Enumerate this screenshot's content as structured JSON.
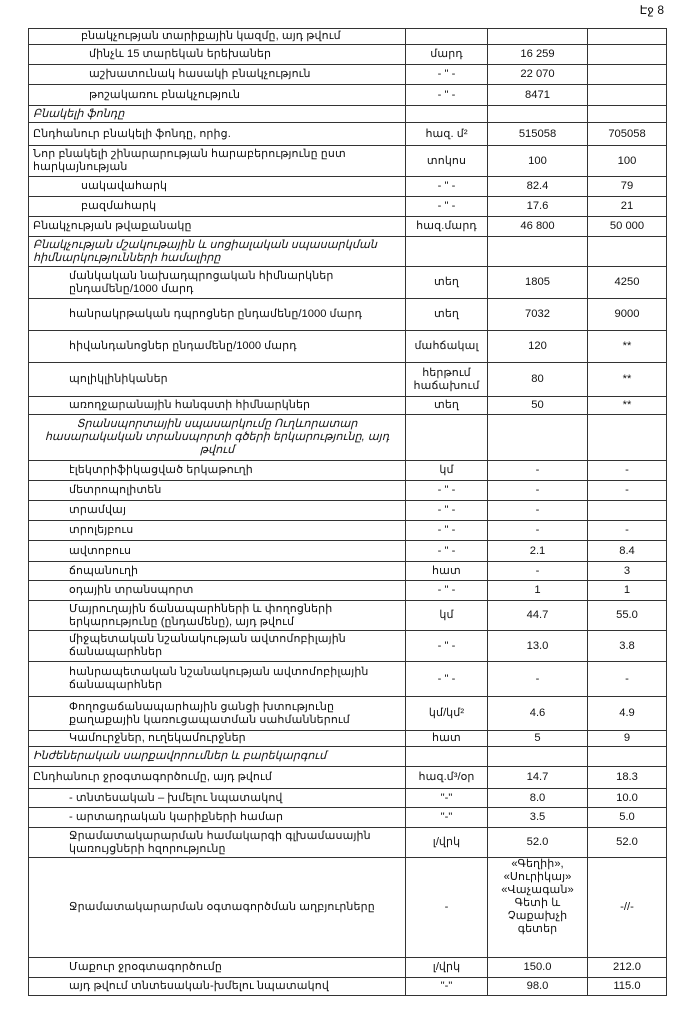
{
  "page_number": "Էջ 8",
  "rows": [
    {
      "label": "բնակչության տարիքային կազմը, այդ թվում",
      "unit": "",
      "v1": "",
      "v2": "",
      "indent": 1,
      "h": 16
    },
    {
      "label": "մինչև 15 տարեկան երեխաներ",
      "unit": "մարդ",
      "v1": "16 259",
      "v2": "",
      "indent": 2,
      "h": 20
    },
    {
      "label": "աշխատունակ հասակի բնակչություն",
      "unit": "- \" -",
      "v1": "22 070",
      "v2": "",
      "indent": 2,
      "h": 20
    },
    {
      "label": "թոշակառու բնակչություն",
      "unit": "- \" -",
      "v1": "8471",
      "v2": "",
      "indent": 2,
      "h": 21
    },
    {
      "label": "Բնակելի ֆոնդը",
      "unit": "",
      "v1": "",
      "v2": "",
      "kind": "sec",
      "h": 17
    },
    {
      "label": "Ընդհանուր բնակելի ֆոնդը, որից.",
      "unit": "հազ. մ²",
      "v1": "515058",
      "v2": "705058",
      "h": 23
    },
    {
      "label": "Նոր բնակելի շինարարության հարաբերությունը ըստ հարկայնության",
      "unit": "տոկոս",
      "v1": "100",
      "v2": "100",
      "h": 31
    },
    {
      "label": "սակավահարկ",
      "unit": "- \" -",
      "v1": "82.4",
      "v2": "79",
      "indent": 1,
      "h": 20
    },
    {
      "label": "բազմահարկ",
      "unit": "- \" -",
      "v1": "17.6",
      "v2": "21",
      "indent": 1,
      "h": 20
    },
    {
      "label": "Բնակչության թվաքանակը",
      "unit": "հազ.մարդ",
      "v1": "46 800",
      "v2": "50 000",
      "h": 20
    },
    {
      "label": "Բնակչության մշակութային և սոցիալական սպասարկման հիմնարկությունների համալիրը",
      "unit": "",
      "v1": "",
      "v2": "",
      "kind": "sec",
      "h": 30
    },
    {
      "label": "մանկական նախադպրոցական հիմնարկներ ընդամենը/1000 մարդ",
      "unit": "տեղ",
      "v1": "1805",
      "v2": "4250",
      "indent": 3,
      "h": 32
    },
    {
      "label": "հանրակրթական դպրոցներ ընդամենը/1000 մարդ",
      "unit": "տեղ",
      "v1": "7032",
      "v2": "9000",
      "indent": 3,
      "h": 32
    },
    {
      "label": "հիվանդանոցներ ընդամենը/1000 մարդ",
      "unit": "մահճակալ",
      "v1": "120",
      "v2": "**",
      "indent": 3,
      "h": 32
    },
    {
      "label": "պոլիկլինիկաներ",
      "unit": "հերթում հաճախում",
      "v1": "80",
      "v2": "**",
      "indent": 3,
      "h": 34
    },
    {
      "label": "առողջարանային հանգստի հիմնարկներ",
      "unit": "տեղ",
      "v1": "50",
      "v2": "**",
      "indent": 3,
      "h": 18
    },
    {
      "label": "Տրանսպորտային սպասարկումը Ուղևորատար հասարակական տրանսպորտի գծերի երկարությունը, այդ թվում",
      "unit": "",
      "v1": "",
      "v2": "",
      "kind": "secc",
      "h": 46
    },
    {
      "label": "էլեկտրիֆիկացված երկաթուղի",
      "unit": "կմ",
      "v1": "-",
      "v2": "-",
      "indent": 3,
      "h": 20
    },
    {
      "label": "մետրոպոլիտեն",
      "unit": "- \" -",
      "v1": "-",
      "v2": "-",
      "indent": 3,
      "h": 20
    },
    {
      "label": "տրամվայ",
      "unit": "- \" -",
      "v1": "-",
      "v2": "",
      "indent": 3,
      "h": 20
    },
    {
      "label": "տրոլեյբուս",
      "unit": "- \" -",
      "v1": "-",
      "v2": "-",
      "indent": 3,
      "h": 20
    },
    {
      "label": "ավտոբուս",
      "unit": "- \" -",
      "v1": "2.1",
      "v2": "8.4",
      "indent": 3,
      "h": 21
    },
    {
      "label": "ճոպանուղի",
      "unit": "հատ",
      "v1": "-",
      "v2": "3",
      "indent": 3,
      "h": 19
    },
    {
      "label": "օդային տրանսպորտ",
      "unit": "- \" -",
      "v1": "1",
      "v2": "1",
      "indent": 3,
      "h": 20
    },
    {
      "label": "Մայրուղային ճանապարհների և փողոցների երկարությունը (ընդամենը), այդ թվում",
      "unit": "կմ",
      "v1": "44.7",
      "v2": "55.0",
      "indent": 3,
      "h": 30
    },
    {
      "label": "միջպետական նշանակության ավտոմոբիլային ճանապարհներ",
      "unit": "- \" -",
      "v1": "13.0",
      "v2": "3.8",
      "indent": 3,
      "h": 31
    },
    {
      "label": "հանրապետական նշանակության ավտոմոբիլային ճանապարհներ",
      "unit": "- \" -",
      "v1": "-",
      "v2": "-",
      "indent": 3,
      "h": 35
    },
    {
      "label": "Փողոցաճանապարհային ցանցի խտությունը քաղաքային կառուցապատման սահմաններում",
      "unit": "կմ/կմ²",
      "v1": "4.6",
      "v2": "4.9",
      "indent": 3,
      "h": 34
    },
    {
      "label": "Կամուրջներ, ուղեկամուրջներ",
      "unit": "հատ",
      "v1": "5",
      "v2": "9",
      "indent": 3,
      "h": 16
    },
    {
      "label": "Ինժեներական սարքավորումներ և բարեկարգում",
      "unit": "",
      "v1": "",
      "v2": "",
      "kind": "sec",
      "h": 20
    },
    {
      "label": "Ընդհանուր ջրօգտագործումը, այդ թվում",
      "unit": "հազ.մ³/օր",
      "v1": "14.7",
      "v2": "18.3",
      "h": 22
    },
    {
      "label": "- տնտեսական – խմելու նպատակով",
      "unit": "\"-\"",
      "v1": "8.0",
      "v2": "10.0",
      "indent": 3,
      "h": 19
    },
    {
      "label": "- արտադրական կարիքների համար",
      "unit": "\"-\"",
      "v1": "3.5",
      "v2": "5.0",
      "indent": 3,
      "h": 20
    },
    {
      "label": "Ջրամատակարարման համակարգի գլխամասային կառույցների հզորությունը",
      "unit": "լ/վրկ",
      "v1": "52.0",
      "v2": "52.0",
      "indent": 3,
      "h": 30
    },
    {
      "label": "Ջրամատակարարման օգտագործման աղբյուրները",
      "unit": "-",
      "v1": "«Գեղիի», «Սուրիկայ» «Վաչագան» Գետի և Չաքախչի գետեր",
      "v2": "-//-",
      "indent": 3,
      "h": 100,
      "top": true
    },
    {
      "label": "Մաքուր ջրօգտագործումը",
      "unit": "լ/վրկ",
      "v1": "150.0",
      "v2": "212.0",
      "indent": 3,
      "h": 20
    },
    {
      "label": "այդ թվում տնտեսական-խմելու նպատակով",
      "unit": "\"-\"",
      "v1": "98.0",
      "v2": "115.0",
      "indent": 3,
      "h": 18
    }
  ]
}
